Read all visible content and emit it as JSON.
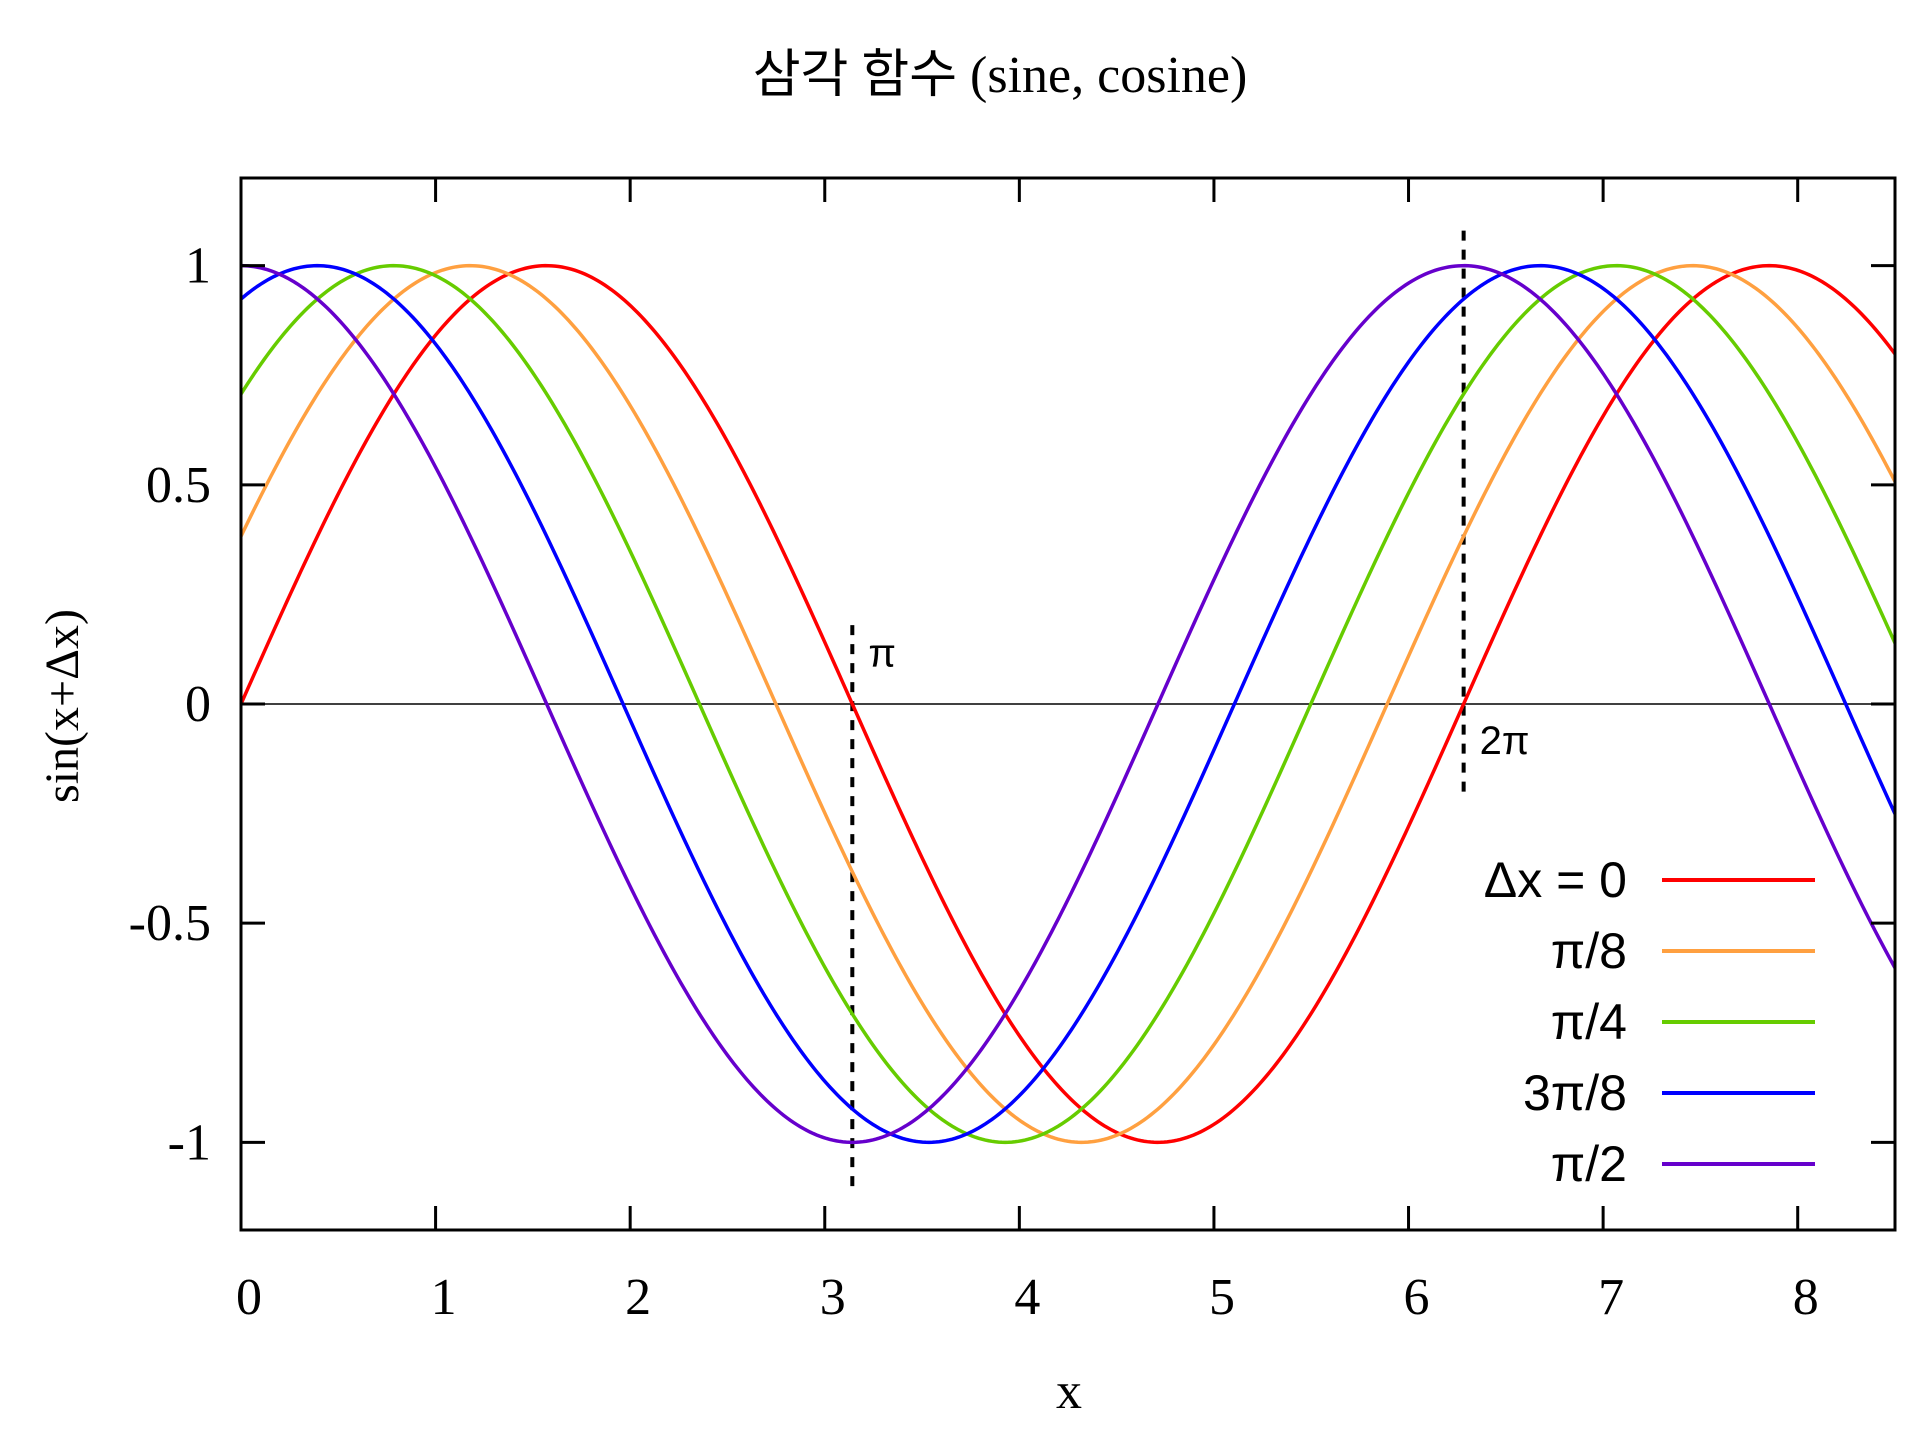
{
  "chart_data": {
    "type": "line",
    "title": "삼각 함수 (sine, cosine)",
    "xlabel": "x",
    "ylabel": "sin(x+Δx)",
    "xlim": [
      0,
      8.5
    ],
    "ylim": [
      -1.2,
      1.2
    ],
    "xticks": [
      "0",
      "1",
      "2",
      "3",
      "4",
      "5",
      "6",
      "7",
      "8"
    ],
    "yticks": [
      "-1",
      "-0.5",
      "0",
      "0.5",
      "1"
    ],
    "grid": false,
    "legend_position": "bottom-right",
    "series": [
      {
        "name": "Δx = 0",
        "phase": 0,
        "color": "#ff0000",
        "x": [
          0,
          1,
          2,
          3,
          4,
          5,
          6,
          7,
          8,
          8.5
        ],
        "y": [
          0.0,
          0.841,
          0.909,
          0.141,
          -0.757,
          -0.959,
          -0.279,
          0.657,
          0.989,
          0.798
        ]
      },
      {
        "name": "π/8",
        "phase": 0.3927,
        "color": "#ffa040",
        "x": [
          0,
          1,
          2,
          3,
          4,
          5,
          6,
          7,
          8,
          8.5
        ],
        "y": [
          0.383,
          0.984,
          0.679,
          -0.246,
          -0.965,
          -0.777,
          0.113,
          0.897,
          0.954,
          0.514
        ]
      },
      {
        "name": "π/4",
        "phase": 0.7854,
        "color": "#66cc00",
        "x": [
          0,
          1,
          2,
          3,
          4,
          5,
          6,
          7,
          8,
          8.5
        ],
        "y": [
          0.707,
          0.977,
          0.349,
          -0.612,
          -0.998,
          -0.466,
          0.482,
          0.997,
          0.751,
          0.148
        ]
      },
      {
        "name": "3π/8",
        "phase": 1.1781,
        "color": "#0000ff",
        "x": [
          0,
          1,
          2,
          3,
          4,
          5,
          6,
          7,
          8,
          8.5
        ],
        "y": [
          0.924,
          0.823,
          -0.035,
          -0.886,
          -0.878,
          -0.097,
          0.785,
          0.957,
          0.427,
          -0.236
        ]
      },
      {
        "name": "π/2",
        "phase": 1.5708,
        "color": "#6600cc",
        "x": [
          0,
          1,
          2,
          3,
          4,
          5,
          6,
          7,
          8,
          8.5
        ],
        "y": [
          1.0,
          0.54,
          -0.416,
          -0.99,
          -0.654,
          0.284,
          0.96,
          0.754,
          -0.146,
          -0.602
        ]
      }
    ],
    "reference_lines": [
      {
        "label": "π",
        "x": 3.1416,
        "y_range": [
          -1.1,
          0.2
        ]
      },
      {
        "label": "2π",
        "x": 6.2832,
        "y_range": [
          -0.2,
          1.1
        ]
      }
    ],
    "zero_line": true
  }
}
